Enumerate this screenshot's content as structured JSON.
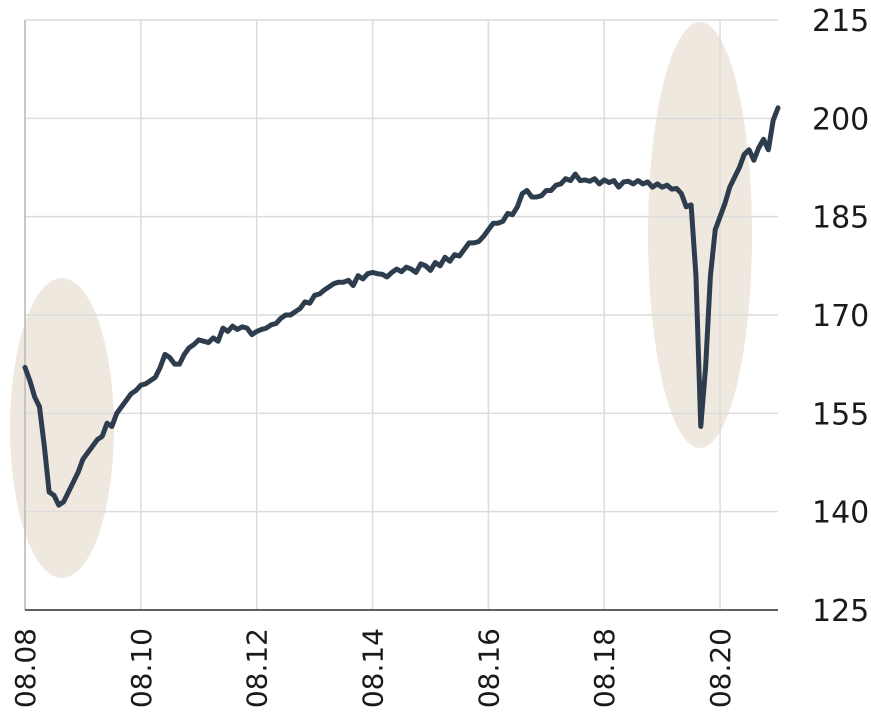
{
  "chart_data": {
    "type": "line",
    "x": [
      "08.08",
      "09.08",
      "10.08",
      "11.08",
      "12.08",
      "01.09",
      "02.09",
      "03.09",
      "04.09",
      "05.09",
      "06.09",
      "07.09",
      "08.09",
      "09.09",
      "10.09",
      "11.09",
      "12.09",
      "01.10",
      "02.10",
      "03.10",
      "04.10",
      "05.10",
      "06.10",
      "07.10",
      "08.10",
      "09.10",
      "10.10",
      "11.10",
      "12.10",
      "01.11",
      "02.11",
      "03.11",
      "04.11",
      "05.11",
      "06.11",
      "07.11",
      "08.11",
      "09.11",
      "10.11",
      "11.11",
      "12.11",
      "01.12",
      "02.12",
      "03.12",
      "04.12",
      "05.12",
      "06.12",
      "07.12",
      "08.12",
      "09.12",
      "10.12",
      "11.12",
      "12.12",
      "01.13",
      "02.13",
      "03.13",
      "04.13",
      "05.13",
      "06.13",
      "07.13",
      "08.13",
      "09.13",
      "10.13",
      "11.13",
      "12.13",
      "01.14",
      "02.14",
      "03.14",
      "04.14",
      "05.14",
      "06.14",
      "07.14",
      "08.14",
      "09.14",
      "10.14",
      "11.14",
      "12.14",
      "01.15",
      "02.15",
      "03.15",
      "04.15",
      "05.15",
      "06.15",
      "07.15",
      "08.15",
      "09.15",
      "10.15",
      "11.15",
      "12.15",
      "01.16",
      "02.16",
      "03.16",
      "04.16",
      "05.16",
      "06.16",
      "07.16",
      "08.16",
      "09.16",
      "10.16",
      "11.16",
      "12.16",
      "01.17",
      "02.17",
      "03.17",
      "04.17",
      "05.17",
      "06.17",
      "07.17",
      "08.17",
      "09.17",
      "10.17",
      "11.17",
      "12.17",
      "01.18",
      "02.18",
      "03.18",
      "04.18",
      "05.18",
      "06.18",
      "07.18",
      "08.18",
      "09.18",
      "10.18",
      "11.18",
      "12.18",
      "01.19",
      "02.19",
      "03.19",
      "04.19",
      "05.19",
      "06.19",
      "07.19",
      "08.19",
      "09.19",
      "10.19",
      "11.19",
      "12.19",
      "01.20",
      "02.20",
      "03.20",
      "04.20",
      "05.20",
      "06.20",
      "07.20",
      "08.20",
      "09.20",
      "10.20",
      "11.20",
      "12.20",
      "01.21",
      "02.21",
      "03.21",
      "04.21",
      "05.21",
      "06.21",
      "07.21",
      "08.21"
    ],
    "series": [
      {
        "color": "#2e3d4d",
        "values": [
          162,
          160,
          157.5,
          156,
          150,
          143,
          142.5,
          141,
          141.5,
          143,
          144.5,
          146,
          148,
          149,
          150,
          151,
          151.5,
          153.5,
          153,
          155,
          156,
          157,
          158,
          158.5,
          159.3,
          159.5,
          160,
          160.5,
          162,
          164,
          163.5,
          162.5,
          162.5,
          164,
          165,
          165.5,
          166.2,
          166,
          165.8,
          166.5,
          166,
          168,
          167.5,
          168.3,
          167.8,
          168.2,
          168,
          167,
          167.5,
          167.8,
          168,
          168.5,
          168.7,
          169.5,
          170,
          170,
          170.5,
          171,
          172,
          171.8,
          173,
          173.2,
          173.8,
          174.3,
          174.8,
          175,
          175,
          175.3,
          174.5,
          176,
          175.5,
          176.3,
          176.5,
          176.3,
          176.2,
          175.8,
          176.5,
          177,
          176.6,
          177.3,
          177,
          176.5,
          177.8,
          177.5,
          176.8,
          178,
          177.5,
          178.8,
          178.2,
          179.2,
          179,
          180,
          181,
          181,
          181.2,
          182,
          183,
          184,
          184,
          184.3,
          185.5,
          185.3,
          186.5,
          188.5,
          189,
          188,
          188,
          188.2,
          189,
          189,
          189.8,
          190,
          190.8,
          190.5,
          191.5,
          190.5,
          190.6,
          190.4,
          190.8,
          190,
          190.6,
          190.2,
          190.5,
          189.5,
          190.3,
          190.4,
          190,
          190.5,
          190,
          190.3,
          189.5,
          190,
          189.5,
          189.8,
          189.2,
          189.3,
          188.5,
          186.5,
          186.8,
          176,
          153,
          162,
          176,
          183,
          185,
          187,
          189.5,
          191,
          192.5,
          194.5,
          195.2,
          193.6,
          195.5,
          196.8,
          195.2,
          199.7,
          201.6
        ]
      }
    ],
    "xticks": [
      "08.08",
      "08.10",
      "08.12",
      "08.14",
      "08.16",
      "08.18",
      "08.20"
    ],
    "ylim": [
      125,
      215
    ],
    "yticks": [
      125,
      140,
      155,
      170,
      185,
      200,
      215
    ],
    "grid": true
  }
}
